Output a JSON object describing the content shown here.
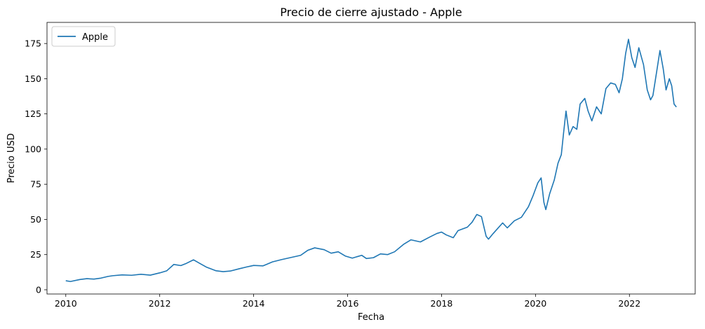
{
  "chart_data": {
    "type": "line",
    "title": "Precio de cierre ajustado - Apple",
    "xlabel": "Fecha",
    "ylabel": "Precio USD",
    "xlim": [
      2009.6,
      2023.4
    ],
    "ylim": [
      -3,
      190
    ],
    "xticks": [
      2010,
      2012,
      2014,
      2016,
      2018,
      2020,
      2022
    ],
    "xtick_labels": [
      "2010",
      "2012",
      "2014",
      "2016",
      "2018",
      "2020",
      "2022"
    ],
    "yticks": [
      0,
      25,
      50,
      75,
      100,
      125,
      150,
      175
    ],
    "ytick_labels": [
      "0",
      "25",
      "50",
      "75",
      "100",
      "125",
      "150",
      "175"
    ],
    "grid": false,
    "legend_position": "top-left",
    "series": [
      {
        "name": "Apple",
        "color": "#1f77b4",
        "points": [
          [
            2010.0,
            6.4
          ],
          [
            2010.1,
            5.9
          ],
          [
            2010.3,
            7.3
          ],
          [
            2010.45,
            7.9
          ],
          [
            2010.6,
            7.6
          ],
          [
            2010.75,
            8.3
          ],
          [
            2010.9,
            9.5
          ],
          [
            2011.0,
            10.0
          ],
          [
            2011.2,
            10.6
          ],
          [
            2011.4,
            10.3
          ],
          [
            2011.6,
            11.0
          ],
          [
            2011.8,
            10.4
          ],
          [
            2012.0,
            12.0
          ],
          [
            2012.15,
            13.5
          ],
          [
            2012.3,
            18.0
          ],
          [
            2012.45,
            17.2
          ],
          [
            2012.55,
            18.5
          ],
          [
            2012.72,
            21.3
          ],
          [
            2012.85,
            18.8
          ],
          [
            2013.0,
            16.0
          ],
          [
            2013.2,
            13.5
          ],
          [
            2013.35,
            12.9
          ],
          [
            2013.5,
            13.3
          ],
          [
            2013.7,
            15.0
          ],
          [
            2013.85,
            16.2
          ],
          [
            2014.0,
            17.3
          ],
          [
            2014.2,
            17.0
          ],
          [
            2014.4,
            19.8
          ],
          [
            2014.6,
            21.5
          ],
          [
            2014.8,
            23.0
          ],
          [
            2015.0,
            24.5
          ],
          [
            2015.15,
            28.0
          ],
          [
            2015.3,
            29.8
          ],
          [
            2015.5,
            28.5
          ],
          [
            2015.65,
            26.0
          ],
          [
            2015.8,
            27.0
          ],
          [
            2015.95,
            24.0
          ],
          [
            2016.1,
            22.5
          ],
          [
            2016.3,
            24.5
          ],
          [
            2016.4,
            22.2
          ],
          [
            2016.55,
            22.8
          ],
          [
            2016.7,
            25.5
          ],
          [
            2016.85,
            25.0
          ],
          [
            2017.0,
            27.0
          ],
          [
            2017.2,
            32.5
          ],
          [
            2017.35,
            35.5
          ],
          [
            2017.55,
            34.0
          ],
          [
            2017.75,
            37.5
          ],
          [
            2017.9,
            40.0
          ],
          [
            2018.0,
            41.0
          ],
          [
            2018.1,
            39.0
          ],
          [
            2018.25,
            37.0
          ],
          [
            2018.35,
            42.0
          ],
          [
            2018.55,
            44.5
          ],
          [
            2018.65,
            48.0
          ],
          [
            2018.75,
            53.5
          ],
          [
            2018.85,
            52.0
          ],
          [
            2018.95,
            38.0
          ],
          [
            2019.0,
            36.0
          ],
          [
            2019.1,
            40.0
          ],
          [
            2019.3,
            47.5
          ],
          [
            2019.4,
            44.0
          ],
          [
            2019.55,
            49.0
          ],
          [
            2019.7,
            51.5
          ],
          [
            2019.85,
            59.0
          ],
          [
            2019.95,
            67.0
          ],
          [
            2020.05,
            76.0
          ],
          [
            2020.12,
            79.5
          ],
          [
            2020.18,
            62.0
          ],
          [
            2020.22,
            57.0
          ],
          [
            2020.3,
            68.0
          ],
          [
            2020.4,
            78.0
          ],
          [
            2020.48,
            90.0
          ],
          [
            2020.55,
            96.0
          ],
          [
            2020.6,
            112.0
          ],
          [
            2020.65,
            127.0
          ],
          [
            2020.72,
            110.0
          ],
          [
            2020.8,
            116.0
          ],
          [
            2020.88,
            114.0
          ],
          [
            2020.95,
            132.0
          ],
          [
            2021.05,
            136.0
          ],
          [
            2021.12,
            127.0
          ],
          [
            2021.2,
            120.0
          ],
          [
            2021.3,
            130.0
          ],
          [
            2021.4,
            125.0
          ],
          [
            2021.5,
            143.0
          ],
          [
            2021.6,
            147.0
          ],
          [
            2021.7,
            146.0
          ],
          [
            2021.78,
            140.0
          ],
          [
            2021.85,
            150.0
          ],
          [
            2021.92,
            168.0
          ],
          [
            2021.98,
            178.0
          ],
          [
            2022.05,
            165.0
          ],
          [
            2022.12,
            158.0
          ],
          [
            2022.2,
            172.0
          ],
          [
            2022.3,
            160.0
          ],
          [
            2022.38,
            142.0
          ],
          [
            2022.45,
            135.0
          ],
          [
            2022.5,
            138.0
          ],
          [
            2022.58,
            155.0
          ],
          [
            2022.65,
            170.0
          ],
          [
            2022.72,
            157.0
          ],
          [
            2022.78,
            142.0
          ],
          [
            2022.85,
            150.0
          ],
          [
            2022.9,
            145.0
          ],
          [
            2022.95,
            132.0
          ],
          [
            2023.0,
            129.9
          ]
        ]
      }
    ]
  }
}
